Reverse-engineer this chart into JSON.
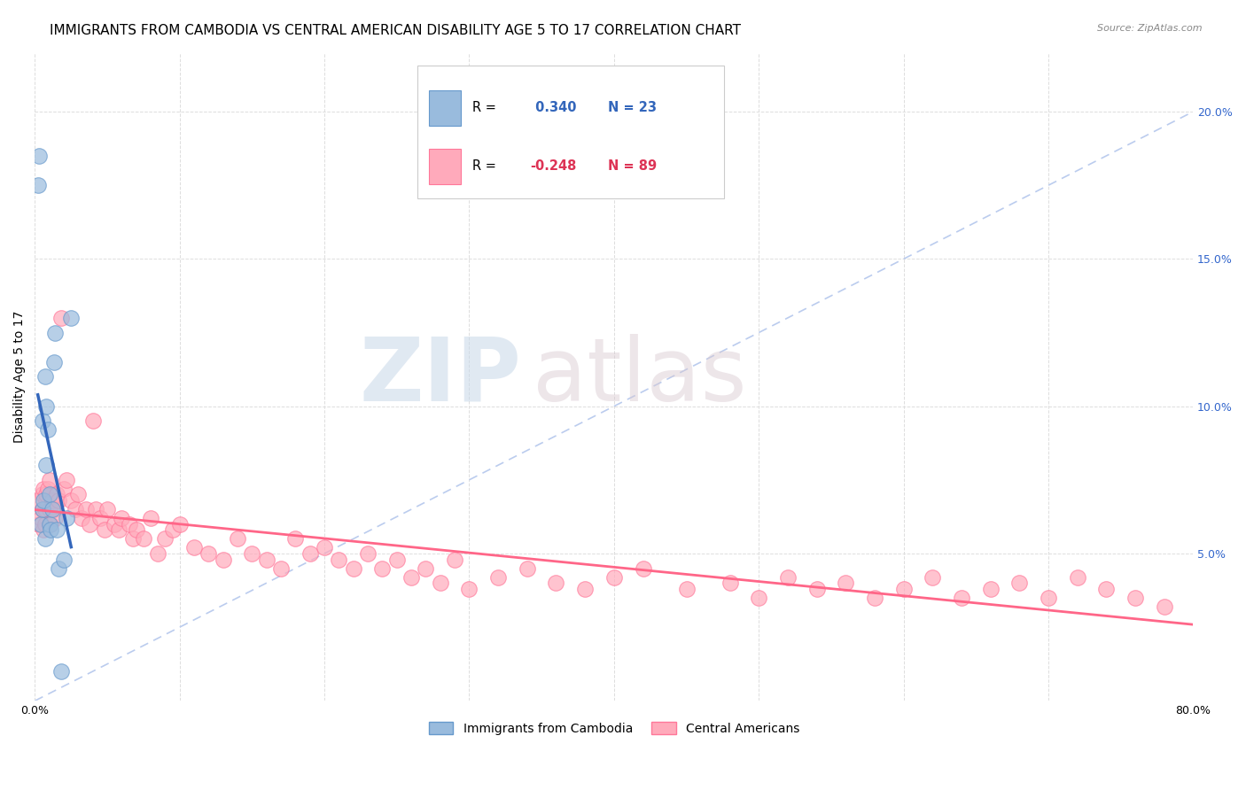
{
  "title": "IMMIGRANTS FROM CAMBODIA VS CENTRAL AMERICAN DISABILITY AGE 5 TO 17 CORRELATION CHART",
  "source": "Source: ZipAtlas.com",
  "ylabel": "Disability Age 5 to 17",
  "xlim": [
    0.0,
    0.8
  ],
  "ylim": [
    0.0,
    0.22
  ],
  "cambodia_color": "#99bbdd",
  "cambodia_edge": "#6699cc",
  "central_color": "#ffaabb",
  "central_edge": "#ff7799",
  "trend_cambodia_color": "#3366bb",
  "trend_central_color": "#ff6688",
  "ref_line_color": "#bbccee",
  "r_cambodia": 0.34,
  "n_cambodia": 23,
  "r_central": -0.248,
  "n_central": 89,
  "legend_label_1": "Immigrants from Cambodia",
  "legend_label_2": "Central Americans",
  "watermark_zip": "ZIP",
  "watermark_atlas": "atlas",
  "grid_color": "#dddddd",
  "background_color": "#ffffff",
  "title_fontsize": 11,
  "axis_label_fontsize": 10,
  "tick_fontsize": 9,
  "cambodia_x": [
    0.002,
    0.003,
    0.004,
    0.005,
    0.005,
    0.006,
    0.007,
    0.007,
    0.008,
    0.008,
    0.009,
    0.01,
    0.01,
    0.011,
    0.012,
    0.013,
    0.014,
    0.015,
    0.016,
    0.018,
    0.02,
    0.022,
    0.025
  ],
  "cambodia_y": [
    0.175,
    0.185,
    0.06,
    0.095,
    0.065,
    0.068,
    0.055,
    0.11,
    0.08,
    0.1,
    0.092,
    0.06,
    0.07,
    0.058,
    0.065,
    0.115,
    0.125,
    0.058,
    0.045,
    0.01,
    0.048,
    0.062,
    0.13
  ],
  "central_x": [
    0.002,
    0.003,
    0.004,
    0.005,
    0.005,
    0.006,
    0.006,
    0.007,
    0.007,
    0.008,
    0.008,
    0.009,
    0.01,
    0.01,
    0.011,
    0.012,
    0.013,
    0.014,
    0.015,
    0.016,
    0.018,
    0.02,
    0.022,
    0.025,
    0.028,
    0.03,
    0.032,
    0.035,
    0.038,
    0.04,
    0.042,
    0.045,
    0.048,
    0.05,
    0.055,
    0.058,
    0.06,
    0.065,
    0.068,
    0.07,
    0.075,
    0.08,
    0.085,
    0.09,
    0.095,
    0.1,
    0.11,
    0.12,
    0.13,
    0.14,
    0.15,
    0.16,
    0.17,
    0.18,
    0.19,
    0.2,
    0.21,
    0.22,
    0.23,
    0.24,
    0.25,
    0.26,
    0.27,
    0.28,
    0.29,
    0.3,
    0.32,
    0.34,
    0.36,
    0.38,
    0.4,
    0.42,
    0.45,
    0.48,
    0.5,
    0.52,
    0.54,
    0.56,
    0.58,
    0.6,
    0.62,
    0.64,
    0.66,
    0.68,
    0.7,
    0.72,
    0.74,
    0.76,
    0.78
  ],
  "central_y": [
    0.068,
    0.06,
    0.062,
    0.065,
    0.07,
    0.058,
    0.072,
    0.06,
    0.065,
    0.068,
    0.07,
    0.072,
    0.075,
    0.065,
    0.06,
    0.068,
    0.065,
    0.062,
    0.07,
    0.068,
    0.13,
    0.072,
    0.075,
    0.068,
    0.065,
    0.07,
    0.062,
    0.065,
    0.06,
    0.095,
    0.065,
    0.062,
    0.058,
    0.065,
    0.06,
    0.058,
    0.062,
    0.06,
    0.055,
    0.058,
    0.055,
    0.062,
    0.05,
    0.055,
    0.058,
    0.06,
    0.052,
    0.05,
    0.048,
    0.055,
    0.05,
    0.048,
    0.045,
    0.055,
    0.05,
    0.052,
    0.048,
    0.045,
    0.05,
    0.045,
    0.048,
    0.042,
    0.045,
    0.04,
    0.048,
    0.038,
    0.042,
    0.045,
    0.04,
    0.038,
    0.042,
    0.045,
    0.038,
    0.04,
    0.035,
    0.042,
    0.038,
    0.04,
    0.035,
    0.038,
    0.042,
    0.035,
    0.038,
    0.04,
    0.035,
    0.042,
    0.038,
    0.035,
    0.032
  ]
}
